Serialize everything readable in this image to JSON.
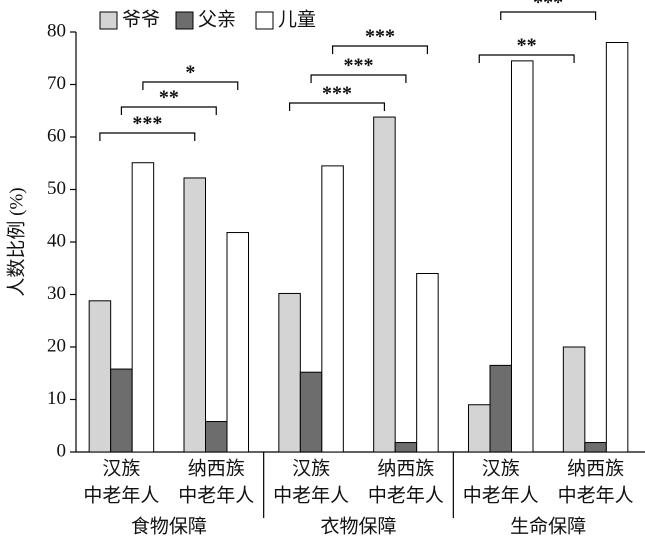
{
  "chart_data": {
    "type": "bar",
    "ylabel": "人数比例 (%)",
    "categories": [
      [
        "汉族",
        "中老年人"
      ],
      [
        "纳西族",
        "中老年人"
      ],
      [
        "汉族",
        "中老年人"
      ],
      [
        "纳西族",
        "中老年人"
      ],
      [
        "汉族",
        "中老年人"
      ],
      [
        "纳西族",
        "中老年人"
      ]
    ],
    "groups": [
      "食物保障",
      "衣物保障",
      "生命保障"
    ],
    "series": [
      {
        "name": "爷爷",
        "color": "#d4d4d4",
        "values": [
          28.8,
          52.2,
          30.2,
          63.8,
          9,
          20
        ]
      },
      {
        "name": "父亲",
        "color": "#6d6d6d",
        "values": [
          15.8,
          5.8,
          15.2,
          1.8,
          16.5,
          1.8
        ]
      },
      {
        "name": "儿童",
        "color": "#ffffff",
        "values": [
          55.1,
          41.8,
          54.5,
          34,
          74.5,
          78
        ]
      }
    ],
    "significance": [
      [
        "***",
        "**",
        "*"
      ],
      [
        "***",
        "***",
        "***"
      ],
      [
        "**",
        "***",
        null
      ]
    ],
    "ylim": [
      0,
      80
    ],
    "yticks": [
      0,
      10,
      20,
      30,
      40,
      50,
      60,
      70,
      80
    ]
  }
}
